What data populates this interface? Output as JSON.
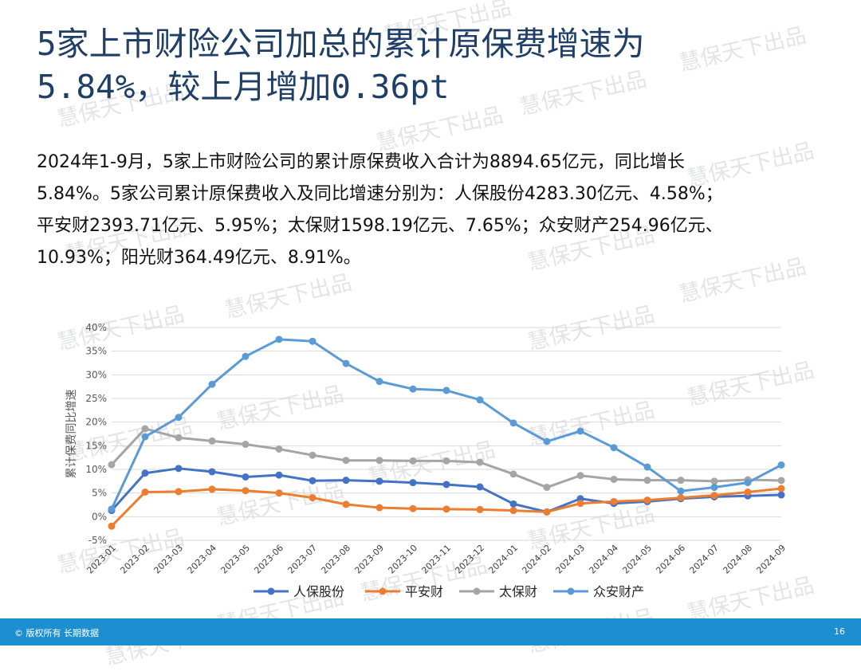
{
  "title": {
    "line1": "5家上市财险公司加总的累计原保费增速为",
    "line2": "5.84%，较上月增加0.36pt"
  },
  "body": {
    "line1": "2024年1-9月，5家上市财险公司的累计原保费收入合计为8894.65亿元，同比增长",
    "line2": "5.84%。5家公司累计原保费收入及同比增速分别为：人保股份4283.30亿元、4.58%；",
    "line3": "平安财2393.71亿元、5.95%；太保财1598.19亿元、7.65%；众安财产254.96亿元、",
    "line4": "10.93%；阳光财364.49亿元、8.91%。"
  },
  "watermark": "慧保天下出品",
  "footer": {
    "copyright": "© 版权所有 长期数据",
    "page_number": "16"
  },
  "chart_data": {
    "type": "line",
    "ylabel": "累计保费同比增速",
    "ylim": [
      -5,
      40
    ],
    "yticks": [
      -5,
      0,
      5,
      10,
      15,
      20,
      25,
      30,
      35,
      40
    ],
    "ytick_labels": [
      "-5%",
      "0%",
      "5%",
      "10%",
      "15%",
      "20%",
      "25%",
      "30%",
      "35%",
      "40%"
    ],
    "grid": true,
    "legend_position": "bottom",
    "categories": [
      "2023-01",
      "2023-02",
      "2023-03",
      "2023-04",
      "2023-05",
      "2023-06",
      "2023-07",
      "2023-08",
      "2023-09",
      "2023-10",
      "2023-11",
      "2023-12",
      "2024-01",
      "2024-02",
      "2024-03",
      "2024-04",
      "2024-05",
      "2024-06",
      "2024-07",
      "2024-08",
      "2024-09"
    ],
    "series": [
      {
        "name": "人保股份",
        "color": "#4472c4",
        "values": [
          1.3,
          9.2,
          10.2,
          9.5,
          8.4,
          8.8,
          7.6,
          7.7,
          7.5,
          7.2,
          6.8,
          6.3,
          2.7,
          1.0,
          3.8,
          2.8,
          3.2,
          3.8,
          4.2,
          4.4,
          4.6
        ]
      },
      {
        "name": "平安财",
        "color": "#ed7d31",
        "values": [
          -2.0,
          5.2,
          5.3,
          5.8,
          5.5,
          5.0,
          4.0,
          2.6,
          1.9,
          1.7,
          1.6,
          1.5,
          1.3,
          1.0,
          2.8,
          3.2,
          3.5,
          4.0,
          4.5,
          5.2,
          5.95
        ]
      },
      {
        "name": "太保财",
        "color": "#a5a5a5",
        "values": [
          11.0,
          18.6,
          16.7,
          16.0,
          15.3,
          14.3,
          13.0,
          11.9,
          11.9,
          11.8,
          11.8,
          11.5,
          9.0,
          6.2,
          8.7,
          7.9,
          7.7,
          7.7,
          7.5,
          7.8,
          7.65
        ]
      },
      {
        "name": "众安财产",
        "color": "#5b9bd5",
        "values": [
          1.6,
          16.9,
          21.0,
          28.0,
          33.9,
          37.5,
          37.1,
          32.4,
          28.6,
          27.0,
          26.7,
          24.7,
          19.8,
          15.9,
          18.1,
          14.6,
          10.5,
          5.4,
          6.2,
          7.2,
          10.93
        ]
      }
    ]
  }
}
